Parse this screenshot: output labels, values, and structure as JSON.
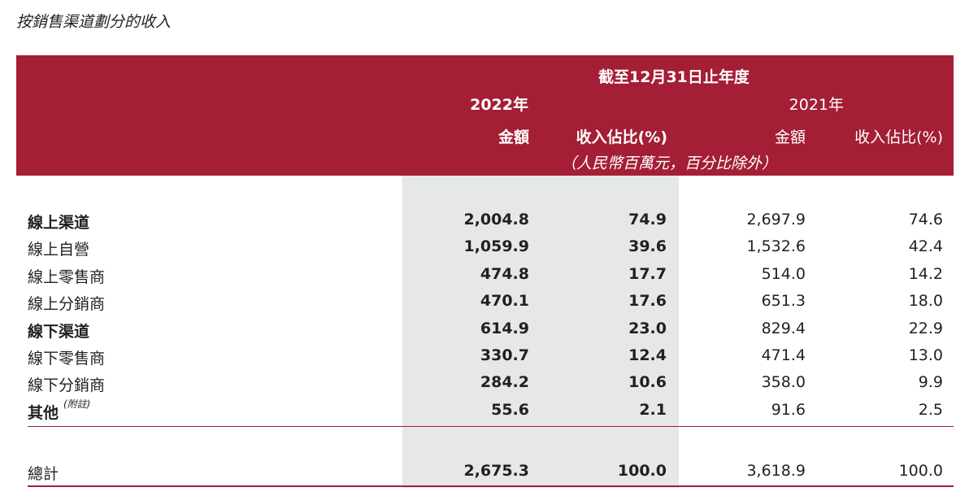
{
  "title": "按銷售渠道劃分的收入",
  "header": {
    "period": "截至12月31日止年度",
    "year_2022": "2022年",
    "year_2021": "2021年",
    "amount_2022": "金額",
    "share_2022": "收入佔比(%)",
    "amount_2021": "金額",
    "share_2021": "收入佔比(%)",
    "unit_note": "（人民幣百萬元，百分比除外）"
  },
  "rows": [
    {
      "label": "線上渠道",
      "bold": true,
      "v2022": "2,004.8",
      "p2022": "74.9",
      "v2021": "2,697.9",
      "p2021": "74.6"
    },
    {
      "label": "線上自營",
      "bold": false,
      "v2022": "1,059.9",
      "p2022": "39.6",
      "v2021": "1,532.6",
      "p2021": "42.4"
    },
    {
      "label": "線上零售商",
      "bold": false,
      "v2022": "474.8",
      "p2022": "17.7",
      "v2021": "514.0",
      "p2021": "14.2"
    },
    {
      "label": "線上分銷商",
      "bold": false,
      "v2022": "470.1",
      "p2022": "17.6",
      "v2021": "651.3",
      "p2021": "18.0"
    },
    {
      "label": "線下渠道",
      "bold": true,
      "v2022": "614.9",
      "p2022": "23.0",
      "v2021": "829.4",
      "p2021": "22.9"
    },
    {
      "label": "線下零售商",
      "bold": false,
      "v2022": "330.7",
      "p2022": "12.4",
      "v2021": "471.4",
      "p2021": "13.0"
    },
    {
      "label": "線下分銷商",
      "bold": false,
      "v2022": "284.2",
      "p2022": "10.6",
      "v2021": "358.0",
      "p2021": "9.9"
    },
    {
      "label": "其他",
      "note": "(附註)",
      "bold": true,
      "v2022": "55.6",
      "p2022": "2.1",
      "v2021": "91.6",
      "p2021": "2.5"
    }
  ],
  "total": {
    "label": "總計",
    "v2022": "2,675.3",
    "p2022": "100.0",
    "v2021": "3,618.9",
    "p2021": "100.0"
  },
  "colors": {
    "header_bg": "#a41e35",
    "shade": "#e6e7e8",
    "text": "#231f20"
  }
}
